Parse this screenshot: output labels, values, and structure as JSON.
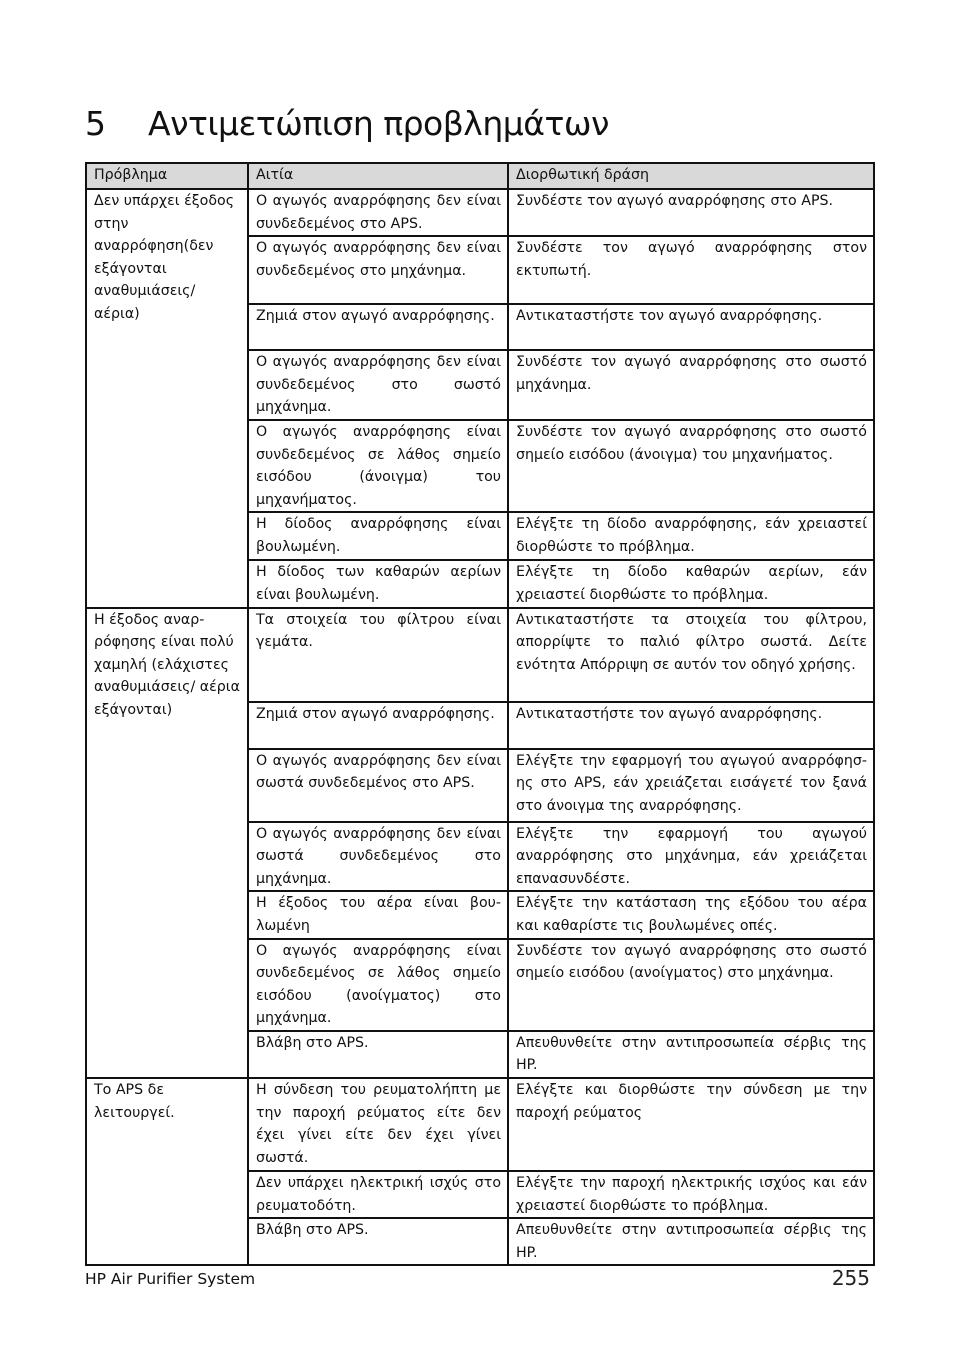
{
  "heading": {
    "number": "5",
    "title": "Αντιμετώπιση προβλημάτων"
  },
  "table": {
    "headers": [
      "Πρόβλημα",
      "Αιτία",
      "Διορθωτική δράση"
    ],
    "groups": [
      {
        "problem": "Δεν υπάρχει έξοδος στην αναρρόφηση(δεν εξάγονται αναθυμιάσεις/ αέρια)",
        "rows": [
          {
            "cause": "Ο αγωγός αναρρόφησης δεν είναι συνδεδεμένος στο APS.",
            "action": "Συνδέστε τον αγωγό αναρρόφησης στο APS."
          },
          {
            "cause": "Ο αγωγός αναρρόφησης δεν είναι συνδεδεμένος στο μηχάνημα.",
            "action": "Συνδέστε τον αγωγό αναρρόφησης στον εκτυπωτή."
          },
          {
            "cause": "Ζημιά στον αγωγό αναρρόφησης.",
            "action": "Αντικαταστήστε τον αγωγό αναρρόφησης."
          },
          {
            "cause": "Ο αγωγός αναρρόφησης δεν είναι συνδεδεμένος στο σωστό μηχάνημα.",
            "action": "Συνδέστε τον αγωγό αναρρόφησης στο σωστό μηχάνημα."
          },
          {
            "cause": "Ο αγωγός αναρρόφησης είναι συνδεδεμένος σε λάθος σημείο εισόδου (άνοιγμα) του μηχανήματος.",
            "action": "Συνδέστε τον αγωγό αναρρόφησης στο σωστό σημείο εισόδου (άνοιγμα) του μηχανήματος."
          },
          {
            "cause": "Η δίοδος αναρρόφησης είναι βουλωμένη.",
            "action": "Ελέγξτε τη δίοδο αναρρόφησης, εάν χρειαστεί διορθώστε το πρόβλημα."
          },
          {
            "cause": "Η δίοδος των καθαρών αερίων είναι βουλωμένη.",
            "action": "Ελέγξτε τη δίοδο καθαρών αερίων, εάν χρειαστεί διορθώστε το πρόβλημα."
          }
        ]
      },
      {
        "problem": "Η έξοδος αναρ- ρόφησης είναι πολύ χαμηλή (ελάχιστες αναθυμιάσεις/ αέρια εξάγονται)",
        "rows": [
          {
            "cause": "Τα στοιχεία του φίλτρου είναι γεμάτα.",
            "action": "Αντικαταστήστε τα στοιχεία του φίλτρου, απορρίψτε το παλιό φίλτρο σωστά. Δείτε ενότητα Απόρριψη σε αυτόν τον οδηγό χρήσης."
          },
          {
            "cause": "Ζημιά στον αγωγό αναρρόφησης.",
            "action": "Αντικαταστήστε τον αγωγό αναρρόφησης."
          },
          {
            "cause": "Ο αγωγός αναρρόφησης δεν είναι σωστά συνδεδεμένος στο APS.",
            "action": "Ελέγξτε την εφαρμογή του αγωγού αναρρόφησ- ης στο APS, εάν χρειάζεται εισάγετέ τον ξανά στο άνοιγμα της αναρρόφησης."
          },
          {
            "cause": "Ο αγωγός αναρρόφησης δεν είναι σωστά συνδεδεμένος στο μηχάνημα.",
            "action": "Ελέγξτε την εφαρμογή του αγωγού αναρρόφησης στο μηχάνημα, εάν χρειάζεται επανασυνδέστε."
          },
          {
            "cause": "Η έξοδος του αέρα είναι βου- λωμένη",
            "action": "Ελέγξτε την κατάσταση της εξόδου του αέρα και καθαρίστε τις βουλωμένες οπές."
          },
          {
            "cause": "Ο αγωγός αναρρόφησης είναι συνδεδεμένος σε λάθος σημείο εισόδου (ανοίγματος) στο μηχάνημα.",
            "action": "Συνδέστε τον αγωγό αναρρόφησης στο σωστό σημείο εισόδου (ανοίγματος) στο μηχάνημα."
          },
          {
            "cause": "Βλάβη στο APS.",
            "action": "Απευθυνθείτε στην αντιπροσωπεία σέρβις της HP."
          }
        ]
      },
      {
        "problem": "Το APS δε λειτουργεί.",
        "rows": [
          {
            "cause": "Η σύνδεση του ρευματολήπτη με την παροχή ρεύματος είτε δεν έχει γίνει είτε δεν έχει γίνει σωστά.",
            "action": "Ελέγξτε και διορθώστε την σύνδεση με την παροχή ρεύματος"
          },
          {
            "cause": "Δεν υπάρχει ηλεκτρική ισχύς στο ρευματοδότη.",
            "action": "Ελέγξτε την παροχή ηλεκτρικής ισχύος και εάν χρειαστεί διορθώστε το πρόβλημα."
          },
          {
            "cause": "Βλάβη στο APS.",
            "action": "Απευθυνθείτε στην αντιπροσωπεία σέρβις της HP."
          }
        ]
      }
    ]
  },
  "footer": {
    "product": "HP Air Purifier System",
    "page_number": "255"
  }
}
